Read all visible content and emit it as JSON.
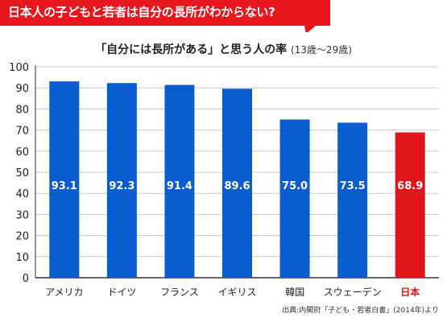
{
  "headline": "日本人の子どもと若者は自分の長所がわからない?",
  "source": "出典:内閣府「子ども・若者白書」(2014年)より",
  "colors": {
    "banner": "#e8161d",
    "bar": "#0a5cd1",
    "highlight": "#e0161b"
  },
  "chart_data": {
    "type": "bar",
    "title": "「自分には長所がある」と思う人の率",
    "subtitle": "(13歳〜29歳)",
    "categories": [
      "アメリカ",
      "ドイツ",
      "フランス",
      "イギリス",
      "韓国",
      "スウェーデン",
      "日本"
    ],
    "values": [
      93.1,
      92.3,
      91.4,
      89.6,
      75.0,
      73.5,
      68.9
    ],
    "value_labels": [
      "93.1",
      "92.3",
      "91.4",
      "89.6",
      "75.0",
      "73.5",
      "68.9"
    ],
    "highlight_category": "日本",
    "ylim": [
      0,
      100
    ],
    "yticks": [
      0,
      10,
      20,
      30,
      40,
      50,
      60,
      70,
      80,
      90,
      100
    ],
    "grid": true,
    "xlabel": "",
    "ylabel": ""
  }
}
